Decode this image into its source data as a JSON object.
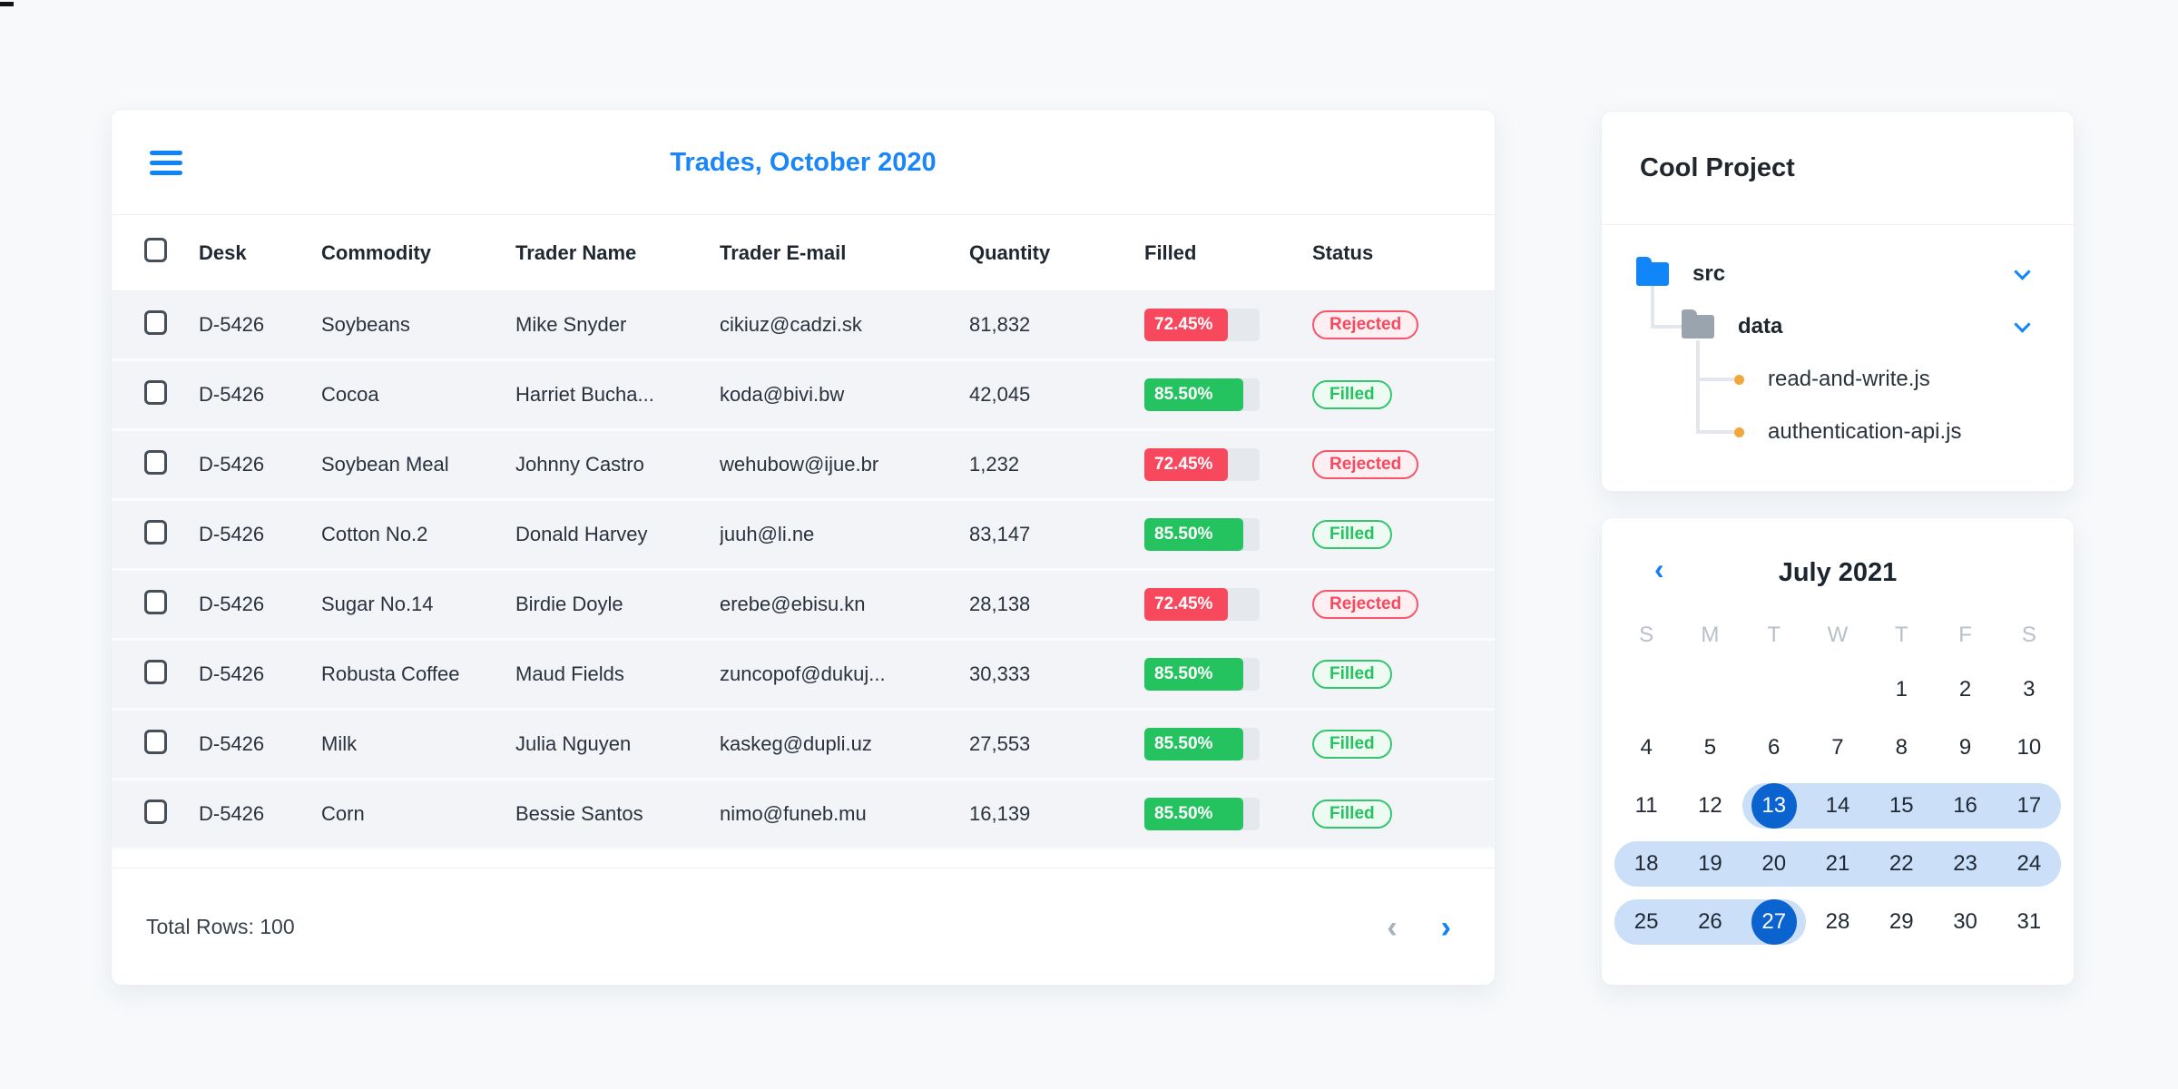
{
  "colors": {
    "accent_blue": "#1b86f8",
    "selected_blue": "#0b63d0",
    "range_blue": "#cbdff8",
    "red": "#f8485e",
    "red_badge_bg": "#fef0f2",
    "green": "#24c35f",
    "green_badge_bg": "#eefbf3"
  },
  "trades": {
    "title": "Trades, October 2020",
    "columns": [
      "Desk",
      "Commodity",
      "Trader Name",
      "Trader E-mail",
      "Quantity",
      "Filled",
      "Status"
    ],
    "rows": [
      {
        "desk": "D-5426",
        "commodity": "Soybeans",
        "trader_name": "Mike Snyder",
        "trader_email": "cikiuz@cadzi.sk",
        "quantity": "81,832",
        "filled_label": "72.45%",
        "filled_pct": 72.45,
        "status": "Rejected"
      },
      {
        "desk": "D-5426",
        "commodity": "Cocoa",
        "trader_name": "Harriet Bucha...",
        "trader_email": "koda@bivi.bw",
        "quantity": "42,045",
        "filled_label": "85.50%",
        "filled_pct": 85.5,
        "status": "Filled"
      },
      {
        "desk": "D-5426",
        "commodity": "Soybean Meal",
        "trader_name": "Johnny Castro",
        "trader_email": "wehubow@ijue.br",
        "quantity": "1,232",
        "filled_label": "72.45%",
        "filled_pct": 72.45,
        "status": "Rejected"
      },
      {
        "desk": "D-5426",
        "commodity": "Cotton No.2",
        "trader_name": "Donald Harvey",
        "trader_email": "juuh@li.ne",
        "quantity": "83,147",
        "filled_label": "85.50%",
        "filled_pct": 85.5,
        "status": "Filled"
      },
      {
        "desk": "D-5426",
        "commodity": "Sugar No.14",
        "trader_name": "Birdie Doyle",
        "trader_email": "erebe@ebisu.kn",
        "quantity": "28,138",
        "filled_label": "72.45%",
        "filled_pct": 72.45,
        "status": "Rejected"
      },
      {
        "desk": "D-5426",
        "commodity": "Robusta Coffee",
        "trader_name": "Maud Fields",
        "trader_email": "zuncopof@dukuj...",
        "quantity": "30,333",
        "filled_label": "85.50%",
        "filled_pct": 85.5,
        "status": "Filled"
      },
      {
        "desk": "D-5426",
        "commodity": "Milk",
        "trader_name": "Julia Nguyen",
        "trader_email": "kaskeg@dupli.uz",
        "quantity": "27,553",
        "filled_label": "85.50%",
        "filled_pct": 85.5,
        "status": "Filled"
      },
      {
        "desk": "D-5426",
        "commodity": "Corn",
        "trader_name": "Bessie Santos",
        "trader_email": "nimo@funeb.mu",
        "quantity": "16,139",
        "filled_label": "85.50%",
        "filled_pct": 85.5,
        "status": "Filled"
      }
    ],
    "footer": {
      "total_rows_label": "Total Rows: 100",
      "prev_icon": "‹",
      "next_icon": "›"
    }
  },
  "file_tree": {
    "title": "Cool Project",
    "folders": [
      {
        "name": "src"
      },
      {
        "name": "data"
      }
    ],
    "files": [
      "read-and-write.js",
      "authentication-api.js"
    ]
  },
  "calendar": {
    "title": "July 2021",
    "prev_icon": "‹",
    "day_headers": [
      "S",
      "M",
      "T",
      "W",
      "T",
      "F",
      "S"
    ],
    "weeks": [
      [
        null,
        null,
        null,
        null,
        1,
        2,
        3
      ],
      [
        4,
        5,
        6,
        7,
        8,
        9,
        10
      ],
      [
        11,
        12,
        13,
        14,
        15,
        16,
        17
      ],
      [
        18,
        19,
        20,
        21,
        22,
        23,
        24
      ],
      [
        25,
        26,
        27,
        28,
        29,
        30,
        31
      ]
    ],
    "range_start": 13,
    "range_end": 27,
    "selected_days": [
      13,
      27
    ]
  }
}
